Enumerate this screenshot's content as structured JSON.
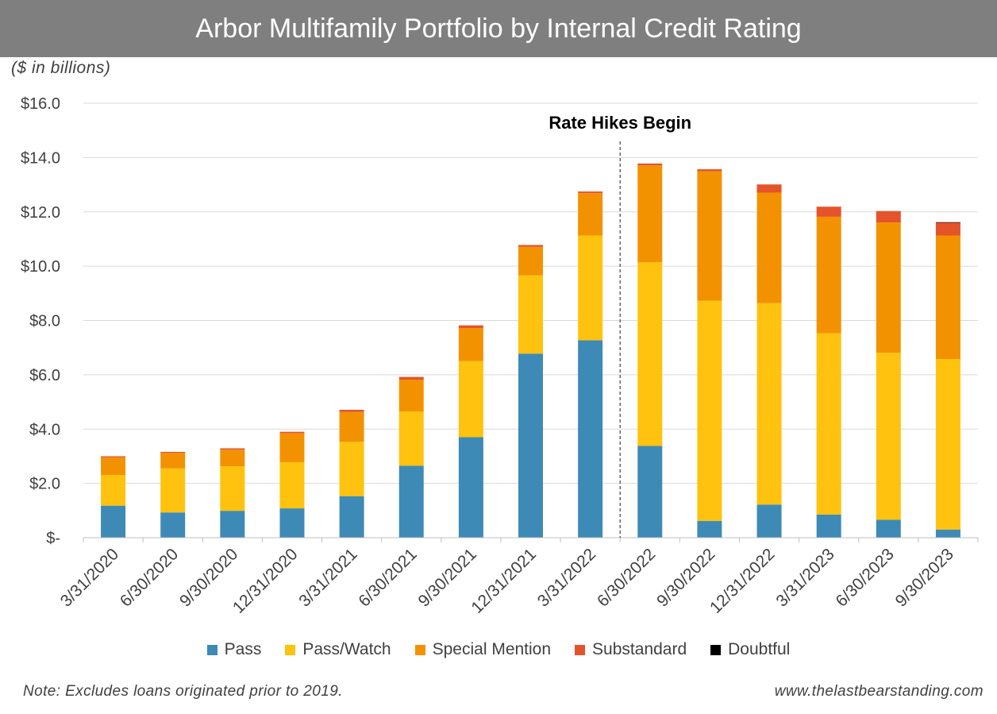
{
  "chart_data": {
    "type": "bar",
    "stacked": true,
    "title": "Arbor Multifamily Portfolio by Internal Credit Rating",
    "units_label": "($ in billions)",
    "ylim": [
      0,
      16
    ],
    "y_ticks": [
      0,
      2,
      4,
      6,
      8,
      10,
      12,
      14,
      16
    ],
    "y_tick_labels": [
      "$-",
      "$2.0",
      "$4.0",
      "$6.0",
      "$8.0",
      "$10.0",
      "$12.0",
      "$14.0",
      "$16.0"
    ],
    "grid": true,
    "categories": [
      "3/31/2020",
      "6/30/2020",
      "9/30/2020",
      "12/31/2020",
      "3/31/2021",
      "6/30/2021",
      "9/30/2021",
      "12/31/2021",
      "3/31/2022",
      "6/30/2022",
      "9/30/2022",
      "12/31/2022",
      "3/31/2023",
      "6/30/2023",
      "9/30/2023"
    ],
    "series": [
      {
        "name": "Pass",
        "color": "#3e8ab6",
        "values": [
          1.18,
          0.93,
          0.99,
          1.08,
          1.53,
          2.65,
          3.7,
          6.78,
          7.27,
          3.38,
          0.62,
          1.22,
          0.85,
          0.66,
          0.3
        ]
      },
      {
        "name": "Pass/Watch",
        "color": "#ffc20e",
        "values": [
          1.13,
          1.62,
          1.64,
          1.7,
          2.0,
          2.0,
          2.8,
          2.88,
          3.86,
          6.76,
          8.11,
          7.42,
          6.68,
          6.15,
          6.28
        ]
      },
      {
        "name": "Special Mention",
        "color": "#f39200",
        "values": [
          0.65,
          0.57,
          0.61,
          1.07,
          1.1,
          1.17,
          1.22,
          1.05,
          1.56,
          3.57,
          4.77,
          4.07,
          4.29,
          4.8,
          4.55
        ]
      },
      {
        "name": "Substandard",
        "color": "#e5532b",
        "values": [
          0.04,
          0.04,
          0.05,
          0.05,
          0.08,
          0.1,
          0.1,
          0.07,
          0.06,
          0.07,
          0.07,
          0.3,
          0.37,
          0.42,
          0.47
        ]
      },
      {
        "name": "Doubtful",
        "color": "#000000",
        "values": [
          0,
          0,
          0,
          0,
          0,
          0,
          0,
          0,
          0,
          0,
          0,
          0,
          0,
          0,
          0.02
        ]
      }
    ],
    "annotation": {
      "text": "Rate Hikes Begin",
      "after_category": "3/31/2022"
    },
    "legend_position": "bottom",
    "note": "Note: Excludes loans originated prior to 2019.",
    "source": "www.thelastbearstanding.com"
  }
}
